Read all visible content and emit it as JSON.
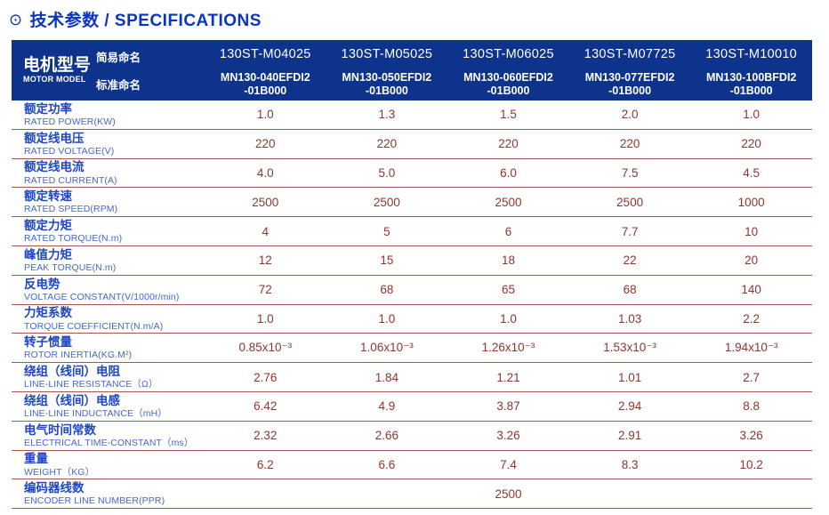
{
  "title": {
    "icon": "⊙",
    "text": "技术参数 / SPECIFICATIONS"
  },
  "header": {
    "motor_model_zh": "电机型号",
    "motor_model_en": "MOTOR MODEL",
    "simple_name_label": "简易命名",
    "standard_name_label": "标准命名",
    "columns": [
      {
        "simple": "130ST-M04025",
        "standard": [
          "MN130-040EFDI2",
          "-01B000"
        ]
      },
      {
        "simple": "130ST-M05025",
        "standard": [
          "MN130-050EFDI2",
          "-01B000"
        ]
      },
      {
        "simple": "130ST-M06025",
        "standard": [
          "MN130-060EFDI2",
          "-01B000"
        ]
      },
      {
        "simple": "130ST-M07725",
        "standard": [
          "MN130-077EFDI2",
          "-01B000"
        ]
      },
      {
        "simple": "130ST-M10010",
        "standard": [
          "MN130-100BFDI2",
          "-01B000"
        ]
      }
    ]
  },
  "rows": [
    {
      "zh": "额定功率",
      "en": "RATED POWER(KW)",
      "values": [
        "1.0",
        "1.3",
        "1.5",
        "2.0",
        "1.0"
      ]
    },
    {
      "zh": "额定线电压",
      "en": "RATED VOLTAGE(V)",
      "values": [
        "220",
        "220",
        "220",
        "220",
        "220"
      ]
    },
    {
      "zh": "额定线电流",
      "en": "RATED CURRENT(A)",
      "values": [
        "4.0",
        "5.0",
        "6.0",
        "7.5",
        "4.5"
      ]
    },
    {
      "zh": "额定转速",
      "en": "RATED SPEED(RPM)",
      "values": [
        "2500",
        "2500",
        "2500",
        "2500",
        "1000"
      ]
    },
    {
      "zh": "额定力矩",
      "en": "RATED TORQUE(N.m)",
      "values": [
        "4",
        "5",
        "6",
        "7.7",
        "10"
      ]
    },
    {
      "zh": "峰值力矩",
      "en": "PEAK TORQUE(N.m)",
      "values": [
        "12",
        "15",
        "18",
        "22",
        "20"
      ]
    },
    {
      "zh": "反电势",
      "en": "VOLTAGE CONSTANT(V/1000r/min)",
      "values": [
        "72",
        "68",
        "65",
        "68",
        "140"
      ]
    },
    {
      "zh": "力矩系数",
      "en": "TORQUE COEFFICIENT(N.m/A)",
      "values": [
        "1.0",
        "1.0",
        "1.0",
        "1.03",
        "2.2"
      ]
    },
    {
      "zh": "转子惯量",
      "en": "ROTOR INERTIA(KG.M²)",
      "values": [
        "0.85x10⁻³",
        "1.06x10⁻³",
        "1.26x10⁻³",
        "1.53x10⁻³",
        "1.94x10⁻³"
      ]
    },
    {
      "zh": "绕组（线间）电阻",
      "en": "LINE-LINE RESISTANCE（Ω）",
      "values": [
        "2.76",
        "1.84",
        "1.21",
        "1.01",
        "2.7"
      ]
    },
    {
      "zh": "绕组（线间）电感",
      "en": "LINE-LINE INDUCTANCE（mH）",
      "values": [
        "6.42",
        "4.9",
        "3.87",
        "2.94",
        "8.8"
      ]
    },
    {
      "zh": "电气时间常数",
      "en": "ELECTRICAL TIME-CONSTANT（ms）",
      "values": [
        "2.32",
        "2.66",
        "3.26",
        "2.91",
        "3.26"
      ]
    },
    {
      "zh": "重量",
      "en": "WEIGHT（KG）",
      "values": [
        "6.2",
        "6.6",
        "7.4",
        "8.3",
        "10.2"
      ]
    },
    {
      "zh": "编码器线数",
      "en": "ENCODER LINE NUMBER(PPR)",
      "merged": true,
      "values": [
        "2500"
      ]
    }
  ],
  "colors": {
    "header_bg": "#0d338c",
    "title_blue": "#0a34c2",
    "label_blue": "#1d46c4",
    "label_blue_light": "#4468cc",
    "value_maroon": "#8c362e",
    "row_line": "#a25a50"
  }
}
